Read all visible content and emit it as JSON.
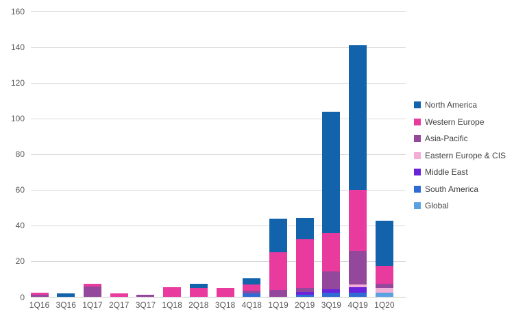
{
  "chart_data": {
    "type": "bar",
    "stacked": true,
    "title": "",
    "xlabel": "",
    "ylabel": "",
    "categories": [
      "1Q16",
      "3Q16",
      "1Q17",
      "2Q17",
      "3Q17",
      "1Q18",
      "2Q18",
      "3Q18",
      "4Q18",
      "1Q19",
      "2Q19",
      "3Q19",
      "4Q19",
      "1Q20"
    ],
    "series": [
      {
        "name": "North America",
        "color": "#1263ac",
        "values": [
          0,
          2,
          0,
          0,
          0,
          0,
          2.5,
          0,
          3.5,
          19,
          12,
          68,
          81,
          25.5
        ]
      },
      {
        "name": "Western Europe",
        "color": "#e93a9e",
        "values": [
          1,
          0,
          1.5,
          2,
          0,
          5.5,
          5,
          5,
          3.5,
          21,
          27.5,
          21.5,
          34,
          10
        ]
      },
      {
        "name": "Asia-Pacific",
        "color": "#93489b",
        "values": [
          1.5,
          0,
          6,
          0,
          1.5,
          0,
          0,
          0,
          1.5,
          4,
          2,
          10,
          19,
          2.5
        ]
      },
      {
        "name": "Eastern Europe & CIS",
        "color": "#f2aed6",
        "values": [
          0,
          0,
          0,
          0,
          0,
          0,
          0,
          0,
          0,
          0,
          0,
          0,
          1.5,
          2.5
        ]
      },
      {
        "name": "Middle East",
        "color": "#6a23db",
        "values": [
          0,
          0,
          0,
          0,
          0,
          0,
          0,
          0,
          0,
          0,
          1.5,
          2,
          3,
          0
        ]
      },
      {
        "name": "South America",
        "color": "#2e6bd4",
        "values": [
          0,
          0,
          0,
          0,
          0,
          0,
          0,
          0,
          2,
          0,
          1.5,
          2.5,
          2.5,
          0
        ]
      },
      {
        "name": "Global",
        "color": "#5aa2e2",
        "values": [
          0,
          0,
          0,
          0,
          0,
          0,
          0,
          0,
          0,
          0,
          0,
          0,
          0,
          2.5
        ]
      }
    ],
    "stack_order_bottom_to_top": [
      "Global",
      "South America",
      "Middle East",
      "Eastern Europe & CIS",
      "Asia-Pacific",
      "Western Europe",
      "North America"
    ],
    "yticks": [
      0,
      20,
      40,
      60,
      80,
      100,
      120,
      140,
      160
    ],
    "ylim": [
      0,
      160
    ],
    "grid": true,
    "legend_position": "right"
  }
}
